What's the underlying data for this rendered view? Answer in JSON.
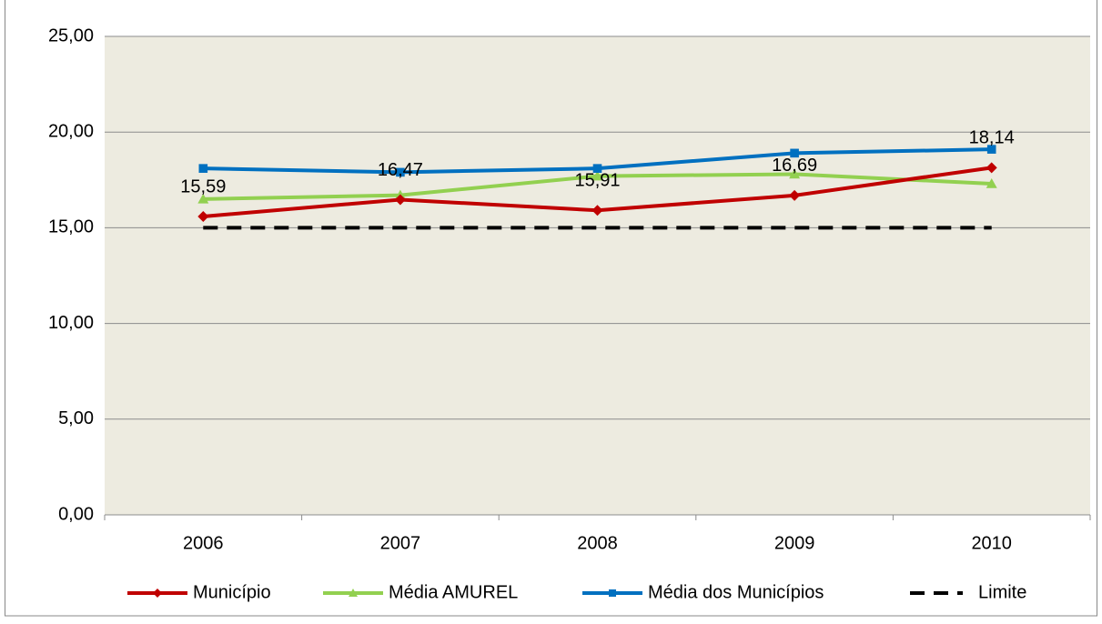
{
  "chart_data": {
    "type": "line",
    "categories": [
      "2006",
      "2007",
      "2008",
      "2009",
      "2010"
    ],
    "series": [
      {
        "name": "Município",
        "color": "#c00000",
        "marker": "diamond",
        "values": [
          15.59,
          16.47,
          15.91,
          16.69,
          18.14
        ],
        "value_labels": [
          "15,59",
          "16,47",
          "15,91",
          "16,69",
          "18,14"
        ]
      },
      {
        "name": "Média AMUREL",
        "color": "#92d050",
        "marker": "triangle",
        "values": [
          16.5,
          16.7,
          17.7,
          17.8,
          17.3
        ]
      },
      {
        "name": "Média dos Municípios",
        "color": "#0070c0",
        "marker": "square",
        "values": [
          18.1,
          17.9,
          18.1,
          18.9,
          19.1
        ]
      },
      {
        "name": "Limite",
        "color": "#000000",
        "dashed": true,
        "values": [
          15,
          15,
          15,
          15,
          15
        ]
      }
    ],
    "ylim": [
      0,
      25
    ],
    "yticks": [
      {
        "value": 0,
        "label": "0,00"
      },
      {
        "value": 5,
        "label": "5,00"
      },
      {
        "value": 10,
        "label": "10,00"
      },
      {
        "value": 15,
        "label": "15,00"
      },
      {
        "value": 20,
        "label": "20,00"
      },
      {
        "value": 25,
        "label": "25,00"
      }
    ],
    "grid": true,
    "legend": "bottom"
  }
}
